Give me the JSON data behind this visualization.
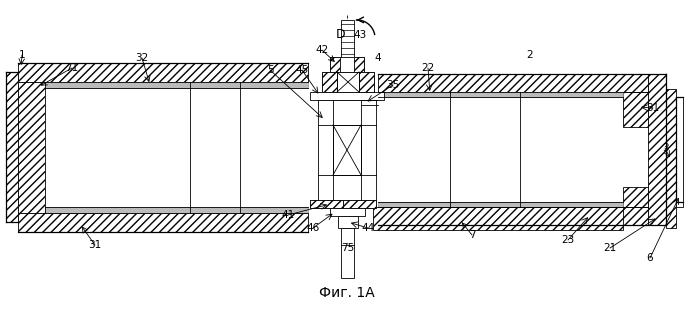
{
  "title": "Фиг. 1А",
  "bg_color": "#ffffff",
  "fig_width": 6.98,
  "fig_height": 3.26,
  "dpi": 100
}
